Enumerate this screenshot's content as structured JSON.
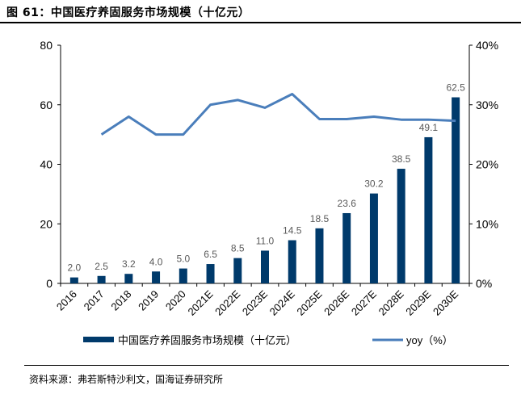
{
  "figure": {
    "title": "图 61：中国医疗养固服务市场规模（十亿元）",
    "source": "资料来源：弗若斯特沙利文，国海证券研究所"
  },
  "colors": {
    "bar": "#003A6B",
    "line": "#4A7EBB",
    "axis": "#000000",
    "text": "#000000",
    "data_label": "#595959"
  },
  "chart_data": {
    "type": "bar",
    "categories": [
      "2016",
      "2017",
      "2018",
      "2019",
      "2020",
      "2021E",
      "2022E",
      "2023E",
      "2024E",
      "2025E",
      "2026E",
      "2027E",
      "2028E",
      "2029E",
      "2030E"
    ],
    "series": [
      {
        "name": "中国医疗养固服务市场规模（十亿元）",
        "type": "bar",
        "axis": "left",
        "values": [
          2.0,
          2.5,
          3.2,
          4.0,
          5.0,
          6.5,
          8.5,
          11.0,
          14.5,
          18.5,
          23.6,
          30.2,
          38.5,
          49.1,
          62.5
        ],
        "labels": [
          "2.0",
          "2.5",
          "3.2",
          "4.0",
          "5.0",
          "6.5",
          "8.5",
          "11.0",
          "14.5",
          "18.5",
          "23.6",
          "30.2",
          "38.5",
          "49.1",
          "62.5"
        ]
      },
      {
        "name": "yoy（%）",
        "type": "line",
        "axis": "right",
        "values": [
          null,
          25,
          28,
          25,
          25,
          30,
          30.8,
          29.5,
          31.8,
          27.6,
          27.6,
          28,
          27.5,
          27.5,
          27.3
        ]
      }
    ],
    "y_left": {
      "min": 0,
      "max": 80,
      "ticks": [
        0,
        20,
        40,
        60,
        80
      ],
      "tick_labels": [
        "0",
        "20",
        "40",
        "60",
        "80"
      ]
    },
    "y_right": {
      "min": 0,
      "max": 40,
      "ticks": [
        0,
        10,
        20,
        30,
        40
      ],
      "tick_labels": [
        "0%",
        "10%",
        "20%",
        "30%",
        "40%"
      ]
    },
    "grid": false,
    "legend_position": "bottom"
  }
}
